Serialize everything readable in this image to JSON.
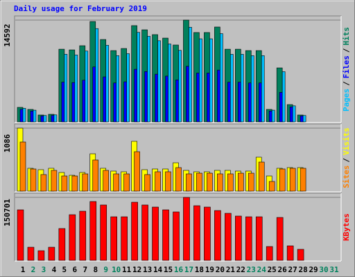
{
  "chart_data": [
    {
      "type": "bar",
      "title": "Daily usage for February 2019",
      "categories": [
        "1",
        "2",
        "3",
        "4",
        "5",
        "6",
        "7",
        "8",
        "9",
        "10",
        "11",
        "12",
        "13",
        "14",
        "15",
        "16",
        "17",
        "18",
        "19",
        "20",
        "21",
        "22",
        "23",
        "24",
        "25",
        "26",
        "27",
        "28",
        "29",
        "30",
        "31"
      ],
      "category_colors": [
        "#000000",
        "#00805c",
        "#00805c",
        "#000000",
        "#000000",
        "#000000",
        "#000000",
        "#000000",
        "#00805c",
        "#00805c",
        "#000000",
        "#000000",
        "#000000",
        "#000000",
        "#000000",
        "#00805c",
        "#00805c",
        "#000000",
        "#000000",
        "#000000",
        "#000000",
        "#000000",
        "#00805c",
        "#00805c",
        "#000000",
        "#000000",
        "#000000",
        "#000000",
        "#000000",
        "#00805c",
        "#00805c"
      ],
      "legend_separator": "/",
      "ylim": [
        0,
        14592
      ],
      "yticks": [
        14592
      ],
      "series": [
        {
          "name": "Pages",
          "color": "#00c0ff",
          "values": [
            1950,
            1680,
            920,
            1010,
            9700,
            9600,
            10150,
            13380,
            10980,
            9500,
            9780,
            12830,
            12280,
            11630,
            11170,
            10250,
            13570,
            11910,
            11910,
            12650,
            9690,
            9690,
            9500,
            9500,
            1680,
            7200,
            2300,
            920,
            null,
            null,
            null
          ]
        },
        {
          "name": "Files",
          "color": "#0000ff",
          "values": [
            1800,
            1550,
            850,
            930,
            5700,
            5640,
            5970,
            7870,
            6450,
            5580,
            5750,
            7540,
            7220,
            6840,
            6560,
            6020,
            7970,
            7000,
            7000,
            7430,
            5690,
            5690,
            5580,
            5580,
            1550,
            4230,
            2150,
            850,
            null,
            null,
            null
          ]
        },
        {
          "name": "Hits",
          "color": "#00805c",
          "values": [
            2085,
            1790,
            990,
            1090,
            10420,
            10320,
            10920,
            14390,
            11810,
            10220,
            10520,
            13800,
            13200,
            12510,
            12010,
            11020,
            14592,
            12810,
            12810,
            13600,
            10420,
            10420,
            10220,
            10220,
            1790,
            7740,
            2480,
            990,
            null,
            null,
            null
          ]
        }
      ]
    },
    {
      "type": "bar",
      "legend_separator": "/",
      "ylim": [
        0,
        1086
      ],
      "yticks": [
        1086
      ],
      "series": [
        {
          "name": "Sites",
          "color": "#ff8000",
          "values": [
            847,
            382,
            286,
            358,
            262,
            262,
            298,
            537,
            358,
            298,
            298,
            680,
            286,
            334,
            334,
            406,
            298,
            310,
            310,
            298,
            298,
            310,
            310,
            501,
            167,
            382,
            394,
            394,
            null,
            null,
            null
          ]
        },
        {
          "name": "Visits",
          "color": "#ffff00",
          "values": [
            1086,
            394,
            370,
            394,
            322,
            274,
            322,
            644,
            394,
            346,
            334,
            859,
            370,
            382,
            382,
            489,
            358,
            334,
            334,
            358,
            358,
            346,
            346,
            585,
            262,
            394,
            406,
            406,
            null,
            null,
            null
          ]
        }
      ]
    },
    {
      "type": "bar",
      "ylim": [
        0,
        150701
      ],
      "yticks": [
        150701
      ],
      "series": [
        {
          "name": "KBytes",
          "color": "#ff0000",
          "values": [
            120900,
            31460,
            23180,
            31460,
            76180,
            109300,
            117600,
            140800,
            132500,
            104300,
            104300,
            139100,
            132500,
            127500,
            120900,
            115900,
            150701,
            130800,
            127500,
            119200,
            112600,
            106000,
            104300,
            104300,
            33120,
            102700,
            34780,
            26500,
            null,
            null,
            null
          ]
        }
      ]
    }
  ]
}
